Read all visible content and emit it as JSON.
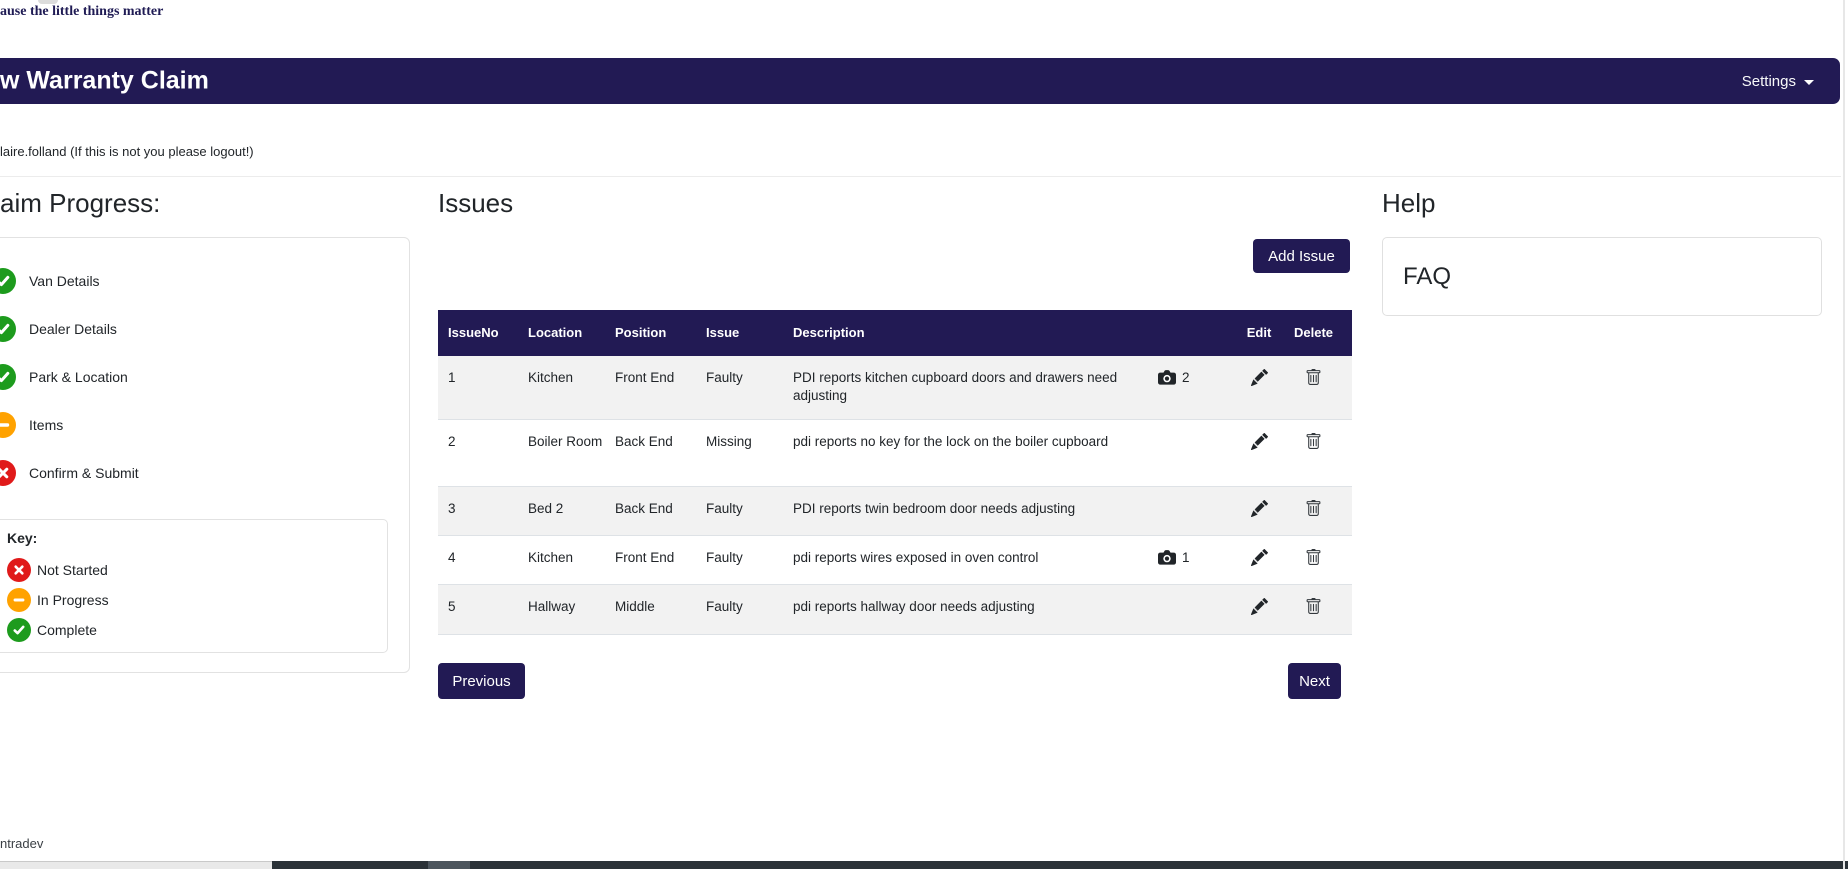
{
  "page": {
    "tagline": "ause the little things matter",
    "footer_text": "ntradev"
  },
  "navbar": {
    "title": "w Warranty Claim",
    "settings_label": "Settings",
    "bg_color": "#221a54"
  },
  "user_bar": {
    "text": "laire.folland (If this is not you please logout!)"
  },
  "progress": {
    "heading": "aim Progress:",
    "items": [
      {
        "label": "Van Details",
        "status": "complete"
      },
      {
        "label": "Dealer Details",
        "status": "complete"
      },
      {
        "label": "Park & Location",
        "status": "complete"
      },
      {
        "label": "Items",
        "status": "in-progress"
      },
      {
        "label": "Confirm & Submit",
        "status": "not-started"
      }
    ],
    "key": {
      "heading": "Key:",
      "items": [
        {
          "label": "Not Started",
          "status": "not-started"
        },
        {
          "label": "In Progress",
          "status": "in-progress"
        },
        {
          "label": "Complete",
          "status": "complete"
        }
      ]
    },
    "status_colors": {
      "complete": "#1d9b1d",
      "in-progress": "#ffa200",
      "not-started": "#e01a1a"
    }
  },
  "issues": {
    "heading": "Issues",
    "add_button": "Add Issue",
    "prev_button": "Previous",
    "next_button": "Next",
    "table": {
      "headers": [
        "IssueNo",
        "Location",
        "Position",
        "Issue",
        "Description",
        "",
        "Edit",
        "Delete"
      ],
      "rows": [
        {
          "no": "1",
          "location": "Kitchen",
          "position": "Front End",
          "issue": "Faulty",
          "description": "PDI reports kitchen cupboard doors and drawers need adjusting",
          "photos": "2"
        },
        {
          "no": "2",
          "location": "Boiler Room",
          "position": "Back End",
          "issue": "Missing",
          "description": "pdi reports no key for the lock on the boiler cupboard",
          "photos": ""
        },
        {
          "no": "3",
          "location": "Bed 2",
          "position": "Back End",
          "issue": "Faulty",
          "description": "PDI reports twin bedroom door needs adjusting",
          "photos": ""
        },
        {
          "no": "4",
          "location": "Kitchen",
          "position": "Front End",
          "issue": "Faulty",
          "description": "pdi reports wires exposed in oven control",
          "photos": "1"
        },
        {
          "no": "5",
          "location": "Hallway",
          "position": "Middle",
          "issue": "Faulty",
          "description": "pdi reports hallway door needs adjusting",
          "photos": ""
        }
      ]
    }
  },
  "help": {
    "heading": "Help",
    "faq_label": "FAQ"
  }
}
